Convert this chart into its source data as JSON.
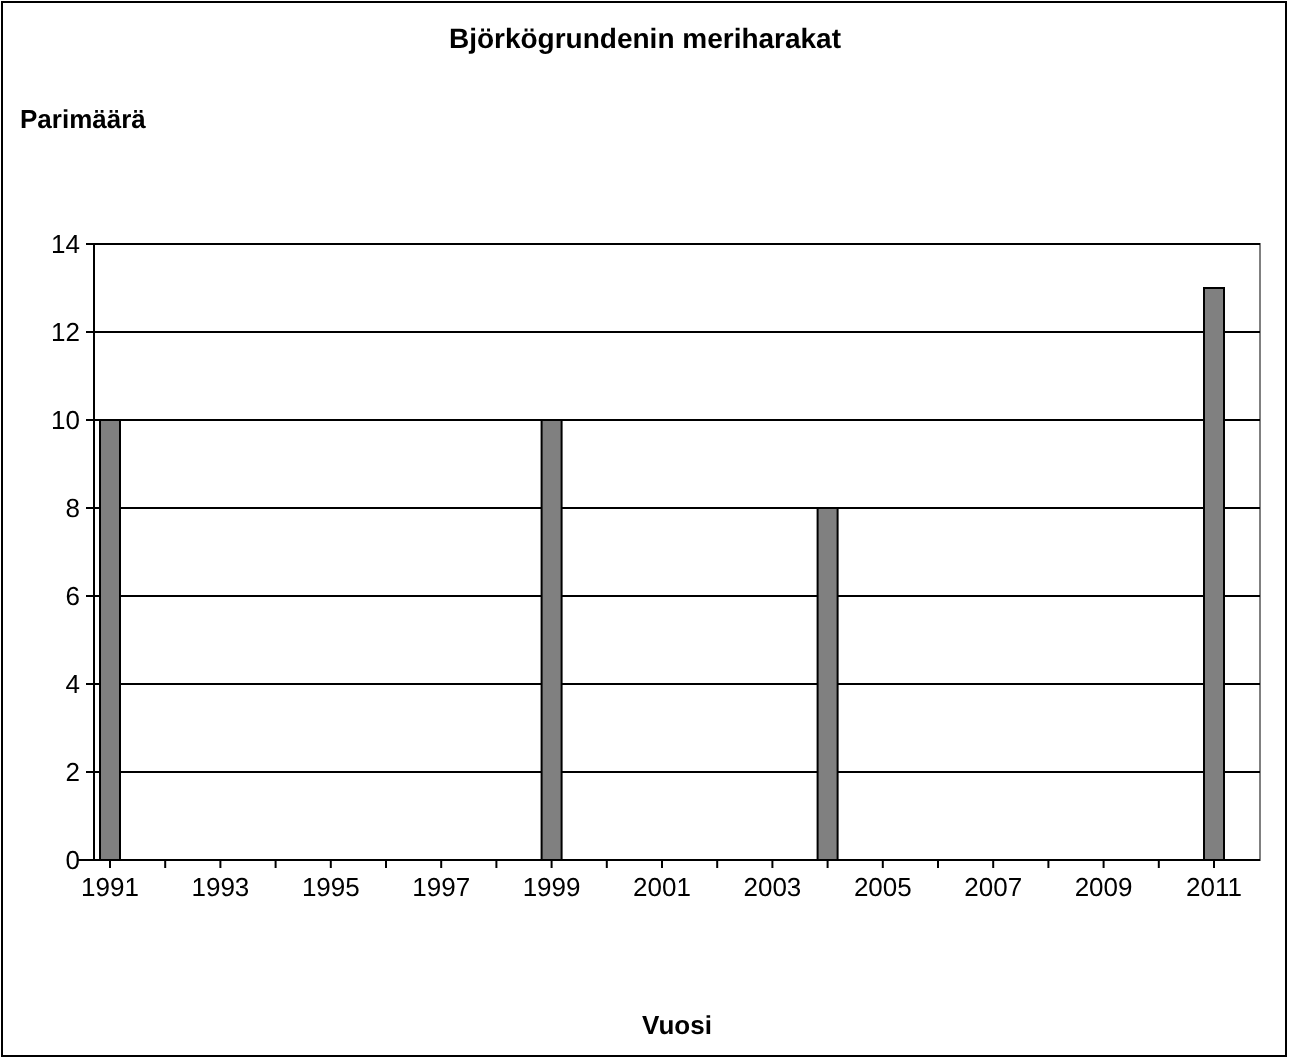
{
  "chart_data": {
    "type": "bar",
    "title": "Björkögrundenin meriharakat",
    "xlabel": "Vuosi",
    "ylabel": "Parimäärä",
    "categories": [
      "1991",
      null,
      "1993",
      null,
      "1995",
      null,
      "1997",
      null,
      "1999",
      null,
      "2001",
      null,
      "2003",
      null,
      "2005",
      null,
      "2007",
      null,
      "2009",
      null,
      "2011"
    ],
    "values": [
      10,
      null,
      null,
      null,
      null,
      null,
      null,
      null,
      10,
      null,
      null,
      null,
      null,
      8,
      null,
      null,
      null,
      null,
      null,
      null,
      13
    ],
    "color": "#808080",
    "ylim": [
      0,
      14
    ],
    "yticks": [
      0,
      2,
      4,
      6,
      8,
      10,
      12,
      14
    ],
    "grid": "y"
  }
}
